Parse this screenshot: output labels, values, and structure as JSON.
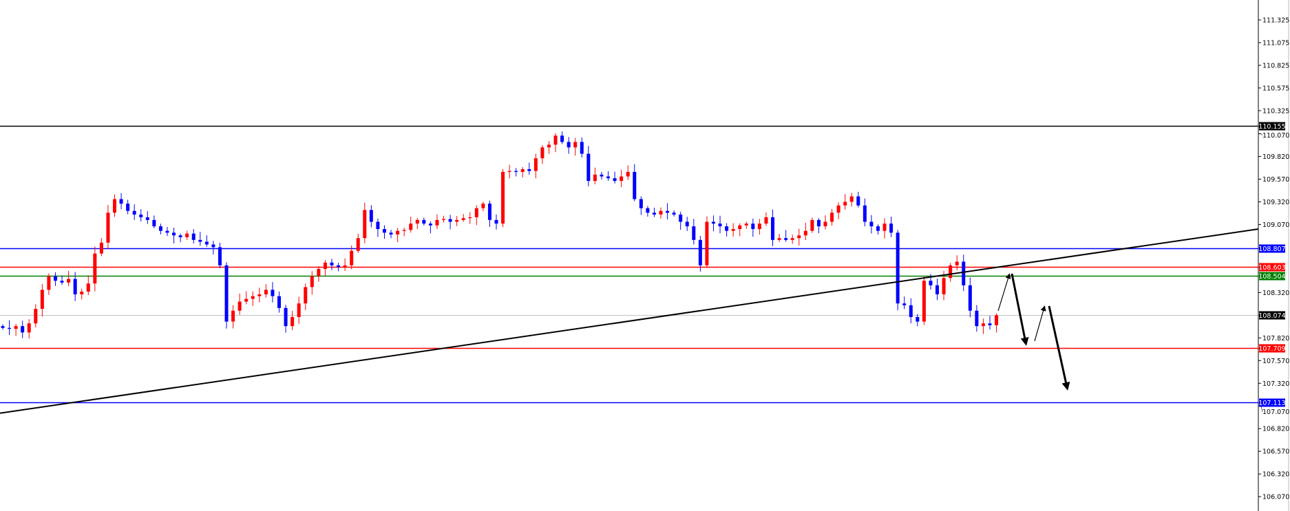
{
  "chart_data": {
    "type": "candlestick",
    "title": "",
    "xlabel": "",
    "ylabel": "",
    "ylim": [
      105.95,
      111.5
    ],
    "grid": false,
    "colors": {
      "bullish": "#ff0000",
      "bearish": "#0000ff",
      "background": "#ffffff",
      "axis": "#000000"
    },
    "y_ticks": [
      "111.325",
      "111.075",
      "110.825",
      "110.575",
      "110.325",
      "110.070",
      "109.820",
      "109.570",
      "109.320",
      "109.070",
      "108.320",
      "107.820",
      "107.570",
      "107.320",
      "107.070",
      "106.820",
      "106.570",
      "106.320",
      "106.070"
    ],
    "first_open": 107.95,
    "closes": [
      107.93,
      107.92,
      107.95,
      107.88,
      107.98,
      108.14,
      108.35,
      108.5,
      108.45,
      108.43,
      108.47,
      108.3,
      108.33,
      108.42,
      108.75,
      108.87,
      109.2,
      109.35,
      109.3,
      109.22,
      109.18,
      109.15,
      109.12,
      109.05,
      109.0,
      108.98,
      108.95,
      108.93,
      108.97,
      108.9,
      108.88,
      108.85,
      108.82,
      108.62,
      108.0,
      108.12,
      108.22,
      108.25,
      108.28,
      108.3,
      108.35,
      108.28,
      108.15,
      107.95,
      108.05,
      108.2,
      108.38,
      108.5,
      108.58,
      108.65,
      108.62,
      108.6,
      108.62,
      108.78,
      108.92,
      109.23,
      109.1,
      109.02,
      108.98,
      108.96,
      109.0,
      109.01,
      109.08,
      109.12,
      109.08,
      109.06,
      109.12,
      109.13,
      109.1,
      109.12,
      109.14,
      109.15,
      109.25,
      109.3,
      109.12,
      109.08,
      109.65,
      109.66,
      109.65,
      109.68,
      109.66,
      109.8,
      109.92,
      109.95,
      110.05,
      109.98,
      109.92,
      109.98,
      109.85,
      109.55,
      109.62,
      109.6,
      109.58,
      109.55,
      109.6,
      109.65,
      109.35,
      109.25,
      109.2,
      109.18,
      109.22,
      109.2,
      109.18,
      109.1,
      109.05,
      108.9,
      108.62,
      109.1,
      109.08,
      109.05,
      109.0,
      109.02,
      109.06,
      109.08,
      109.02,
      109.08,
      109.15,
      108.9,
      108.92,
      108.9,
      108.92,
      108.95,
      109.0,
      109.12,
      109.05,
      109.1,
      109.2,
      109.28,
      109.32,
      109.38,
      109.28,
      109.1,
      109.05,
      109.0,
      109.08,
      108.98,
      108.2,
      108.18,
      108.05,
      108.0,
      108.45,
      108.4,
      108.3,
      108.48,
      108.62,
      108.66,
      108.4,
      108.12,
      107.95,
      107.98,
      107.96,
      108.07
    ],
    "horizontal_levels": [
      {
        "price": 110.155,
        "label": "110.155",
        "color": "#000000"
      },
      {
        "price": 108.807,
        "label": "108.807",
        "color": "#0000ff"
      },
      {
        "price": 108.603,
        "label": "108.603",
        "color": "#ff0000"
      },
      {
        "price": 108.504,
        "label": "108.504",
        "color": "#008000"
      },
      {
        "price": 108.074,
        "label": "108.074",
        "color": "#000000",
        "current": true
      },
      {
        "price": 107.709,
        "label": "107.709",
        "color": "#ff0000"
      },
      {
        "price": 107.113,
        "label": "107.113",
        "color": "#0000ff"
      }
    ],
    "trendline": {
      "price_left": 106.99,
      "price_right": 109.02,
      "color": "#000000"
    }
  }
}
